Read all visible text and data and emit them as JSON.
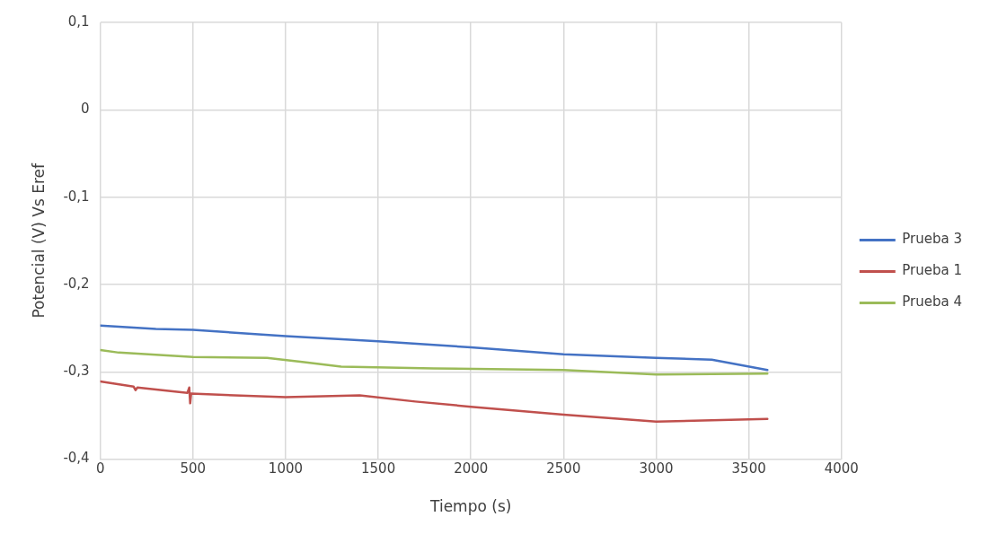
{
  "chart_data": {
    "type": "line",
    "xlabel": "Tiempo (s)",
    "ylabel": "Potencial (V) Vs Eref",
    "xlim": [
      0,
      4000
    ],
    "xticks": [
      0,
      500,
      1000,
      1500,
      2000,
      2500,
      3000,
      3500,
      4000
    ],
    "ylim": [
      -0.4,
      0.1
    ],
    "yticks": [
      {
        "value": -0.4,
        "label": "-0,4"
      },
      {
        "value": -0.3,
        "label": "-0,3"
      },
      {
        "value": -0.2,
        "label": "-0,2"
      },
      {
        "value": -0.1,
        "label": "-0,1"
      },
      {
        "value": 0,
        "label": "0"
      },
      {
        "value": 0.1,
        "label": "0,1"
      }
    ],
    "grid": true,
    "legend": "right",
    "marker": "none",
    "line_style": "solid",
    "series": [
      {
        "name": "Prueba 3",
        "color": "#4472c4",
        "x": [
          0,
          300,
          500,
          1000,
          1500,
          2000,
          2500,
          3000,
          3300,
          3600
        ],
        "values": [
          -0.247,
          -0.251,
          -0.252,
          -0.259,
          -0.265,
          -0.272,
          -0.28,
          -0.284,
          -0.286,
          -0.298
        ]
      },
      {
        "name": "Prueba 1",
        "color": "#c0504d",
        "x": [
          0,
          180,
          190,
          200,
          470,
          480,
          485,
          490,
          1000,
          1400,
          1700,
          2000,
          2500,
          3000,
          3600
        ],
        "values": [
          -0.311,
          -0.317,
          -0.321,
          -0.318,
          -0.324,
          -0.318,
          -0.336,
          -0.325,
          -0.329,
          -0.327,
          -0.334,
          -0.34,
          -0.349,
          -0.357,
          -0.354
        ]
      },
      {
        "name": "Prueba 4",
        "color": "#9bbb59",
        "x": [
          0,
          100,
          500,
          900,
          1100,
          1300,
          1800,
          2500,
          3000,
          3600
        ],
        "values": [
          -0.275,
          -0.278,
          -0.283,
          -0.284,
          -0.289,
          -0.294,
          -0.296,
          -0.298,
          -0.303,
          -0.302
        ]
      }
    ]
  }
}
